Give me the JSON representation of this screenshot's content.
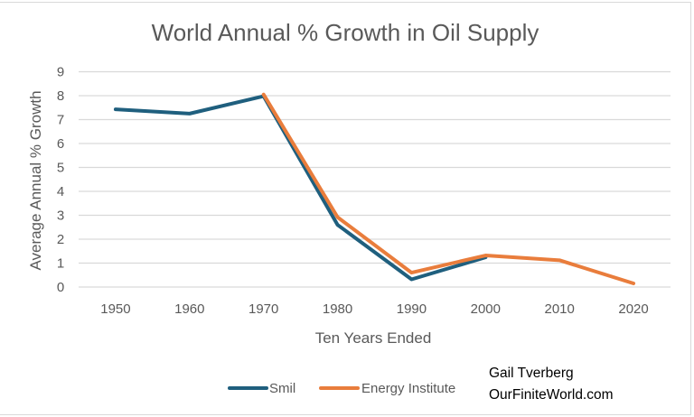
{
  "chart_data": {
    "type": "line",
    "title": "World Annual % Growth in Oil Supply",
    "xlabel": "Ten Years Ended",
    "ylabel": "Average Annual % Growth",
    "categories": [
      "1950",
      "1960",
      "1970",
      "1980",
      "1990",
      "2000",
      "2010",
      "2020"
    ],
    "yticks": [
      "0",
      "1",
      "2",
      "3",
      "4",
      "5",
      "6",
      "7",
      "8",
      "9"
    ],
    "ylim": [
      0,
      9
    ],
    "grid": true,
    "legend_position": "bottom",
    "series": [
      {
        "name": "Smil",
        "color": "#1f5f7e",
        "values": [
          7.43,
          7.25,
          7.98,
          2.6,
          0.32,
          1.24,
          null,
          null
        ]
      },
      {
        "name": "Energy Institute",
        "color": "#e97d3c",
        "values": [
          null,
          null,
          8.05,
          2.92,
          0.6,
          1.32,
          1.12,
          0.15
        ]
      }
    ],
    "annotation": {
      "line1": "Gail Tverberg",
      "line2": "OurFiniteWorld.com"
    }
  }
}
